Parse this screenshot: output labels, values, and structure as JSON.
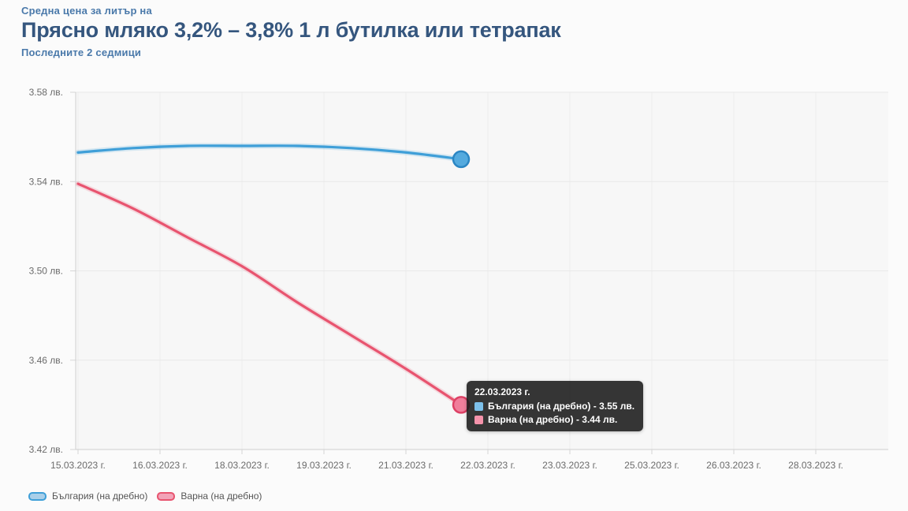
{
  "header": {
    "kicker": "Средна цена за литър на",
    "title": "Прясно мляко 3,2% – 3,8% 1 л бутилка или тетрапак",
    "subtitle": "Последните 2 седмици"
  },
  "chart_data": {
    "type": "line",
    "title": "Прясно мляко 3,2% – 3,8% 1 л бутилка или тетрапак",
    "subtitle": "Последните 2 седмици",
    "x_days": [
      15,
      16,
      17,
      18,
      19,
      20,
      21,
      22
    ],
    "series": [
      {
        "name": "България (на дребно)",
        "color": "#3f9fd8",
        "marker_fill": "#54aade",
        "marker_stroke": "#2b86c3",
        "legend_fill": "#a9cfe9",
        "values": [
          3.553,
          3.555,
          3.556,
          3.556,
          3.556,
          3.555,
          3.553,
          3.55
        ]
      },
      {
        "name": "Варна (на дребно)",
        "color": "#e8546f",
        "marker_fill": "#f07e9b",
        "marker_stroke": "#dd4165",
        "legend_fill": "#f2a3b8",
        "values": [
          3.539,
          3.528,
          3.515,
          3.502,
          3.486,
          3.471,
          3.456,
          3.44
        ]
      }
    ],
    "xticks": [
      "15.03.2023 г.",
      "16.03.2023 г.",
      "18.03.2023 г.",
      "19.03.2023 г.",
      "21.03.2023 г.",
      "22.03.2023 г.",
      "23.03.2023 г.",
      "25.03.2023 г.",
      "26.03.2023 г.",
      "28.03.2023 г."
    ],
    "ytick_labels": [
      "3.58 лв.",
      "3.54 лв.",
      "3.50 лв.",
      "3.46 лв.",
      "3.42 лв."
    ],
    "ytick_values": [
      3.58,
      3.54,
      3.5,
      3.46,
      3.42
    ],
    "ylim": [
      3.42,
      3.58
    ],
    "grid": true,
    "legend_position": "bottom"
  },
  "tooltip": {
    "date": "22.03.2023 г.",
    "rows": [
      {
        "swatch": "#7cc0ea",
        "text": "България (на дребно) - 3.55 лв."
      },
      {
        "swatch": "#f593ab",
        "text": "Варна (на дребно) - 3.44 лв."
      }
    ]
  }
}
